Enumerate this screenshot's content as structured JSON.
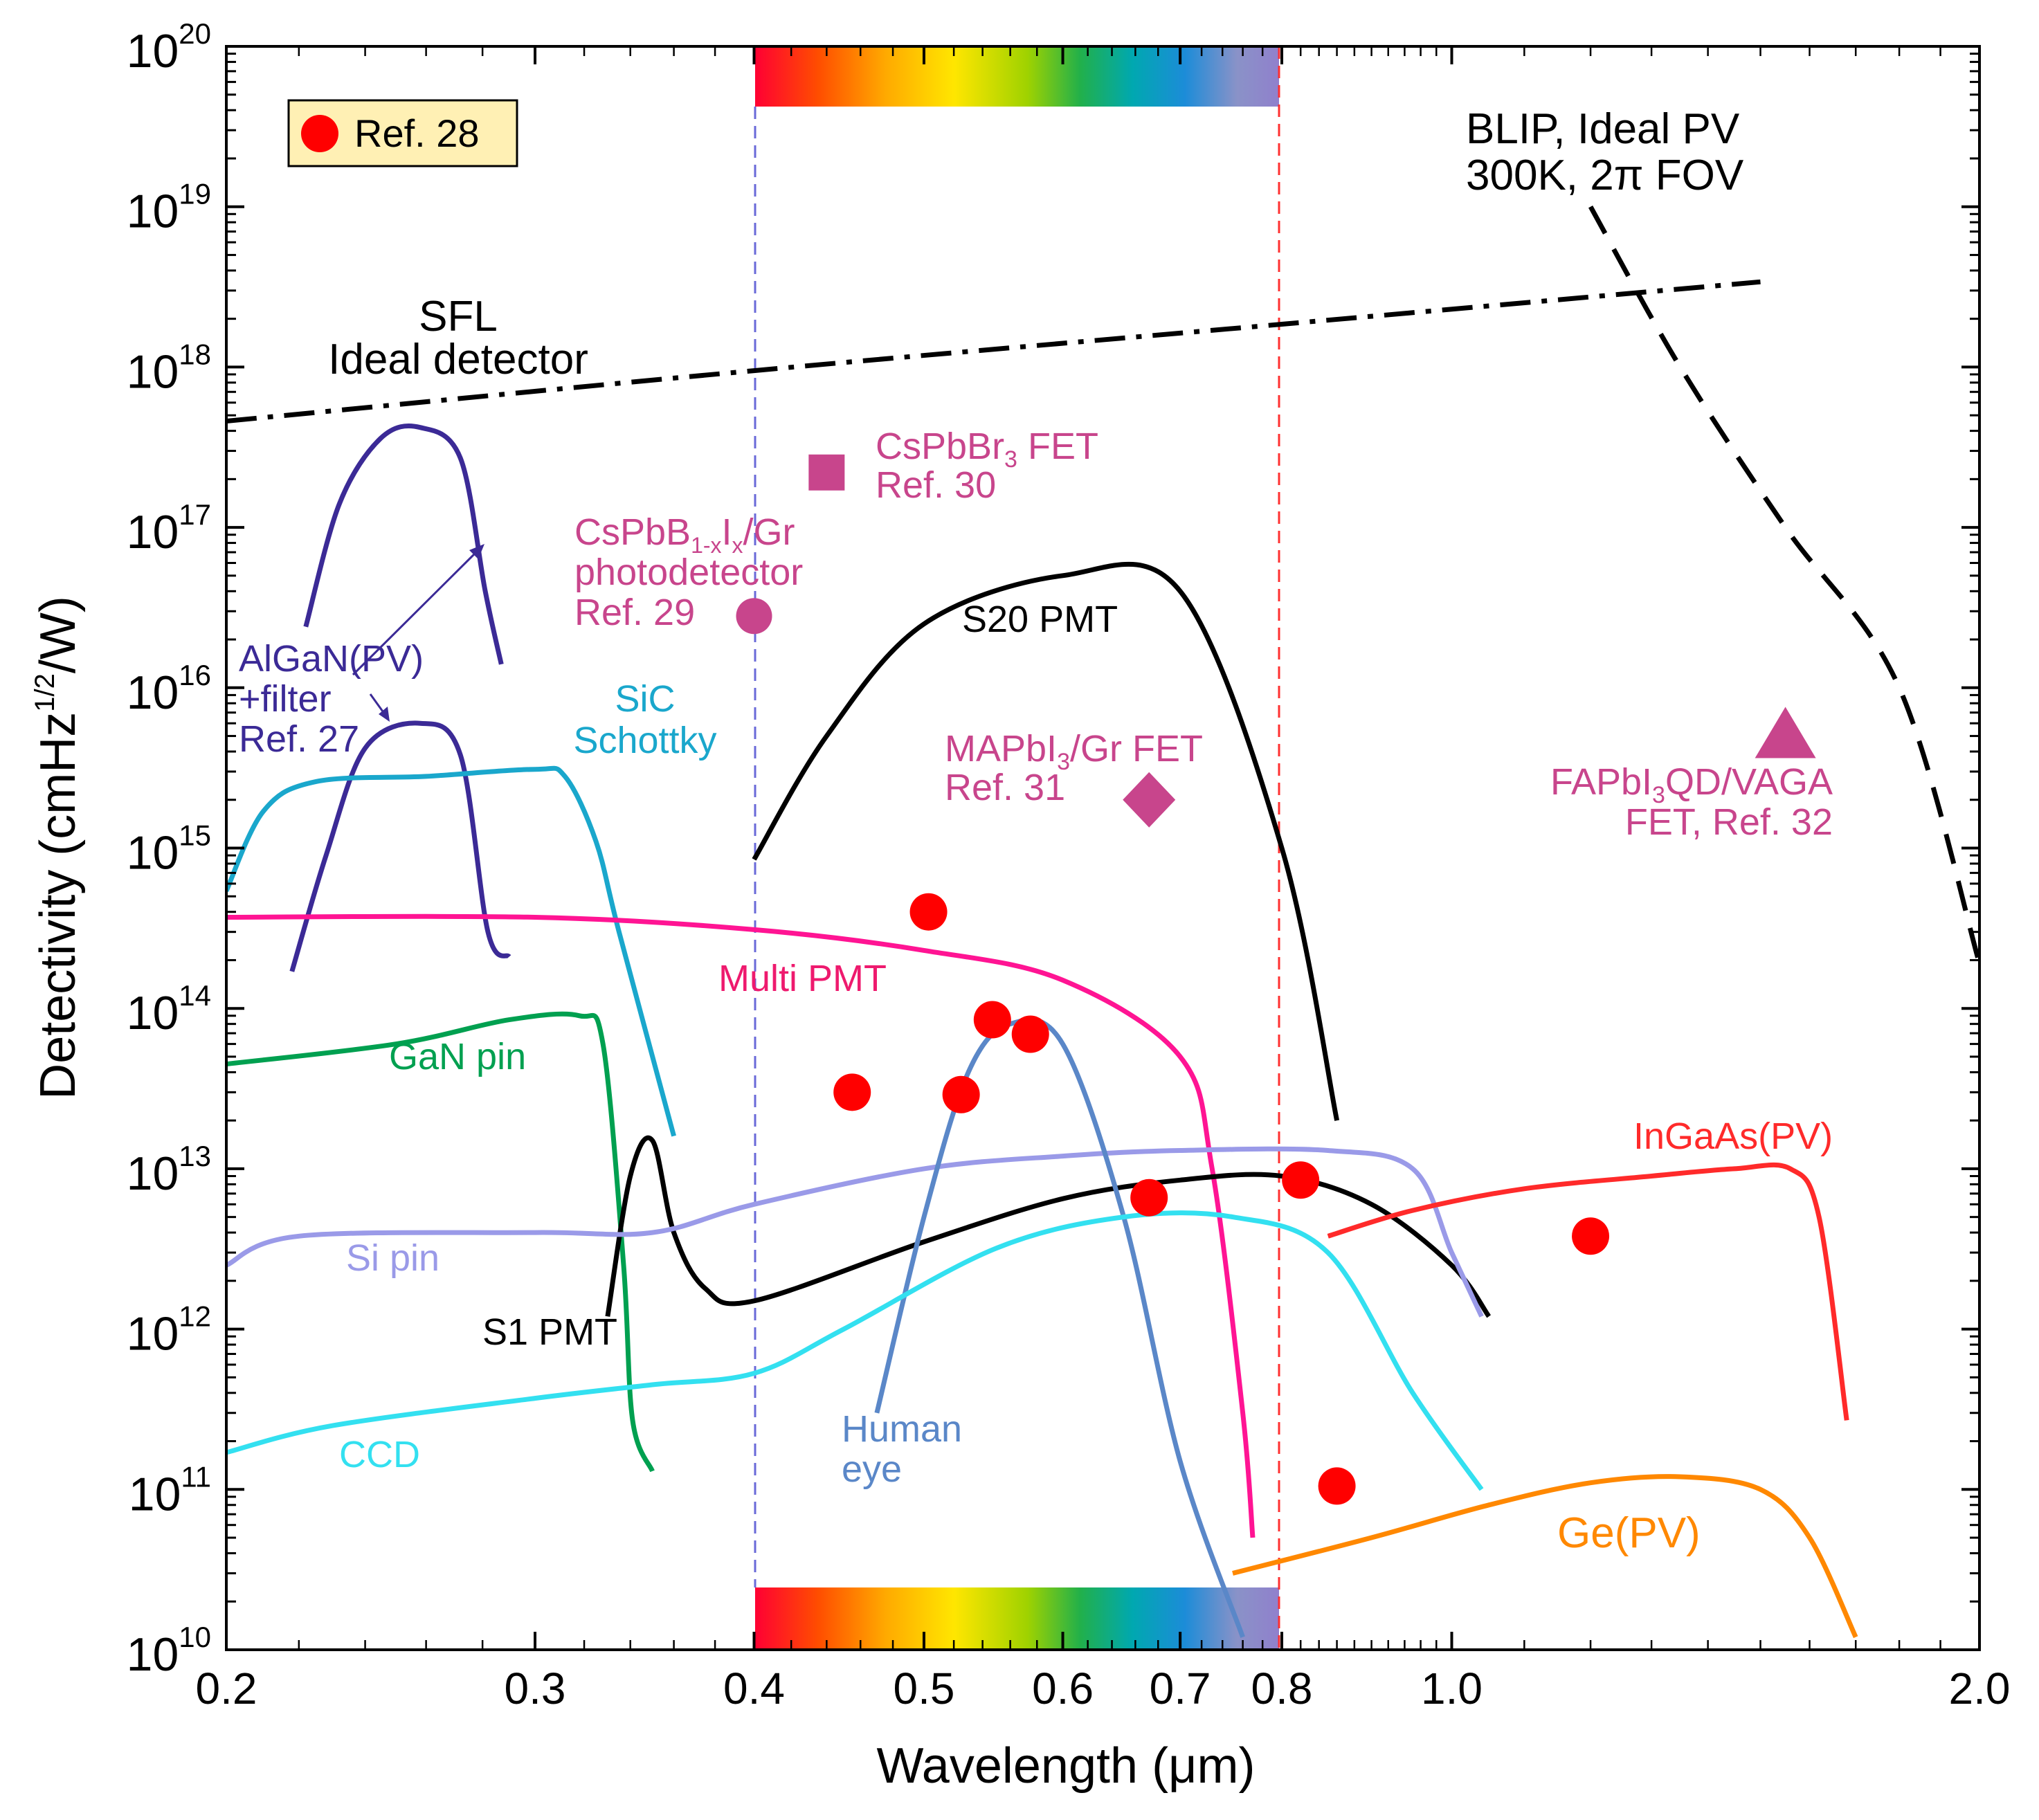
{
  "chart_data": {
    "type": "line",
    "xlabel": "Wavelength (μm)",
    "ylabel": "Detectivity (cmHz^1/2/W)",
    "x_scale": "log",
    "y_scale": "log",
    "xlim": [
      0.2,
      2.0
    ],
    "ylim": [
      10000000000.0,
      1e+20
    ],
    "grid": false,
    "x_ticks": [
      {
        "v": 0.2,
        "label": "0.2"
      },
      {
        "v": 0.3,
        "label": "0.3"
      },
      {
        "v": 0.4,
        "label": "0.4"
      },
      {
        "v": 0.5,
        "label": "0.5"
      },
      {
        "v": 0.6,
        "label": "0.6"
      },
      {
        "v": 0.7,
        "label": "0.7"
      },
      {
        "v": 0.8,
        "label": "0.8"
      },
      {
        "v": 1.0,
        "label": "1.0"
      },
      {
        "v": 2.0,
        "label": "2.0"
      }
    ],
    "y_ticks": [
      {
        "v": 10000000000.0,
        "base": "10",
        "exp": "10"
      },
      {
        "v": 100000000000.0,
        "base": "10",
        "exp": "11"
      },
      {
        "v": 1000000000000.0,
        "base": "10",
        "exp": "12"
      },
      {
        "v": 10000000000000.0,
        "base": "10",
        "exp": "13"
      },
      {
        "v": 100000000000000.0,
        "base": "10",
        "exp": "14"
      },
      {
        "v": 1000000000000000.0,
        "base": "10",
        "exp": "15"
      },
      {
        "v": 1e+16,
        "base": "10",
        "exp": "16"
      },
      {
        "v": 1e+17,
        "base": "10",
        "exp": "17"
      },
      {
        "v": 1e+18,
        "base": "10",
        "exp": "18"
      },
      {
        "v": 1e+19,
        "base": "10",
        "exp": "19"
      },
      {
        "v": 1e+20,
        "base": "10",
        "exp": "20"
      }
    ],
    "visible_band": {
      "start": 0.4,
      "end": 0.8
    },
    "legend": {
      "placement": "top-left",
      "label": "Ref. 28",
      "color": "#ff0000"
    },
    "series": [
      {
        "name": "SFL Ideal detector",
        "color": "#000000",
        "dash": "dashdot",
        "points": [
          [
            0.2,
            4.6e+17
          ],
          [
            0.4,
            9.5e+17
          ],
          [
            0.8,
            1.85e+18
          ],
          [
            1.5,
            3.4e+18
          ]
        ]
      },
      {
        "name": "BLIP, Ideal PV 300K, 2π FOV",
        "color": "#000000",
        "dash": "dash",
        "points": [
          [
            1.2,
            1e+19
          ],
          [
            1.35,
            1e+18
          ],
          [
            1.55,
            1e+17
          ],
          [
            1.8,
            1e+16
          ],
          [
            2.0,
            190000000000000.0
          ]
        ]
      },
      {
        "name": "AlGaN(PV)",
        "color": "#3b2a96",
        "dash": "solid",
        "points": [
          [
            0.222,
            2.4e+16
          ],
          [
            0.232,
            1.4e+17
          ],
          [
            0.245,
            3.6e+17
          ],
          [
            0.258,
            4.2e+17
          ],
          [
            0.272,
            2.7e+17
          ],
          [
            0.281,
            4e+16
          ],
          [
            0.287,
            1.4e+16
          ]
        ]
      },
      {
        "name": "AlGaN(PV) +filter",
        "color": "#3b2a96",
        "dash": "solid",
        "points": [
          [
            0.218,
            170000000000000.0
          ],
          [
            0.228,
            900000000000000.0
          ],
          [
            0.24,
            4200000000000000.0
          ],
          [
            0.258,
            6000000000000000.0
          ],
          [
            0.272,
            3800000000000000.0
          ],
          [
            0.282,
            300000000000000.0
          ],
          [
            0.29,
            210000000000000.0
          ]
        ]
      },
      {
        "name": "SiC Schottky",
        "color": "#1aa7cc",
        "dash": "solid",
        "points": [
          [
            0.2,
            540000000000000.0
          ],
          [
            0.21,
            1700000000000000.0
          ],
          [
            0.225,
            2600000000000000.0
          ],
          [
            0.26,
            2800000000000000.0
          ],
          [
            0.3,
            3100000000000000.0
          ],
          [
            0.312,
            2800000000000000.0
          ],
          [
            0.325,
            1100000000000000.0
          ],
          [
            0.335,
            300000000000000.0
          ],
          [
            0.36,
            16000000000000.0
          ]
        ]
      },
      {
        "name": "Multi PMT",
        "color": "#ff1493",
        "dash": "solid",
        "points": [
          [
            0.2,
            370000000000000.0
          ],
          [
            0.3,
            370000000000000.0
          ],
          [
            0.4,
            310000000000000.0
          ],
          [
            0.5,
            230000000000000.0
          ],
          [
            0.6,
            150000000000000.0
          ],
          [
            0.7,
            50000000000000.0
          ],
          [
            0.73,
            10000000000000.0
          ],
          [
            0.76,
            300000000000.0
          ],
          [
            0.77,
            50000000000.0
          ]
        ]
      },
      {
        "name": "GaN pin",
        "color": "#00a050",
        "dash": "solid",
        "points": [
          [
            0.2,
            45000000000000.0
          ],
          [
            0.25,
            60000000000000.0
          ],
          [
            0.29,
            85000000000000.0
          ],
          [
            0.318,
            90000000000000.0
          ],
          [
            0.328,
            60000000000000.0
          ],
          [
            0.337,
            2500000000000.0
          ],
          [
            0.341,
            270000000000.0
          ],
          [
            0.35,
            130000000000.0
          ]
        ]
      },
      {
        "name": "S20 PMT",
        "color": "#000000",
        "dash": "solid",
        "points": [
          [
            0.4,
            850000000000000.0
          ],
          [
            0.44,
            5000000000000000.0
          ],
          [
            0.5,
            2.5e+16
          ],
          [
            0.6,
            5e+16
          ],
          [
            0.7,
            4e+16
          ],
          [
            0.8,
            1000000000000000.0
          ],
          [
            0.86,
            20000000000000.0
          ]
        ]
      },
      {
        "name": "S1 PMT",
        "color": "#000000",
        "dash": "solid",
        "points": [
          [
            0.33,
            1200000000000.0
          ],
          [
            0.34,
            9000000000000.0
          ],
          [
            0.35,
            15000000000000.0
          ],
          [
            0.36,
            4000000000000.0
          ],
          [
            0.375,
            1800000000000.0
          ],
          [
            0.4,
            1500000000000.0
          ],
          [
            0.5,
            3500000000000.0
          ],
          [
            0.6,
            6500000000000.0
          ],
          [
            0.7,
            8500000000000.0
          ],
          [
            0.8,
            9000000000000.0
          ],
          [
            0.9,
            6000000000000.0
          ],
          [
            1.0,
            2500000000000.0
          ],
          [
            1.05,
            1200000000000.0
          ]
        ]
      },
      {
        "name": "Si pin",
        "color": "#9a9ae8",
        "dash": "solid",
        "points": [
          [
            0.2,
            2500000000000.0
          ],
          [
            0.22,
            3800000000000.0
          ],
          [
            0.3,
            4000000000000.0
          ],
          [
            0.35,
            4000000000000.0
          ],
          [
            0.4,
            6000000000000.0
          ],
          [
            0.5,
            10000000000000.0
          ],
          [
            0.6,
            12000000000000.0
          ],
          [
            0.7,
            13000000000000.0
          ],
          [
            0.85,
            13000000000000.0
          ],
          [
            0.95,
            10000000000000.0
          ],
          [
            1.0,
            3000000000000.0
          ],
          [
            1.04,
            1200000000000.0
          ]
        ]
      },
      {
        "name": "Human eye",
        "color": "#5a87c8",
        "dash": "solid",
        "points": [
          [
            0.47,
            300000000000.0
          ],
          [
            0.5,
            5000000000000.0
          ],
          [
            0.53,
            40000000000000.0
          ],
          [
            0.56,
            80000000000000.0
          ],
          [
            0.6,
            60000000000000.0
          ],
          [
            0.65,
            5000000000000.0
          ],
          [
            0.7,
            150000000000.0
          ],
          [
            0.76,
            12000000000.0
          ]
        ]
      },
      {
        "name": "CCD",
        "color": "#33e0f0",
        "dash": "solid",
        "points": [
          [
            0.2,
            170000000000.0
          ],
          [
            0.23,
            250000000000.0
          ],
          [
            0.3,
            370000000000.0
          ],
          [
            0.35,
            450000000000.0
          ],
          [
            0.4,
            530000000000.0
          ],
          [
            0.45,
            1000000000000.0
          ],
          [
            0.55,
            3200000000000.0
          ],
          [
            0.65,
            5000000000000.0
          ],
          [
            0.75,
            5000000000000.0
          ],
          [
            0.85,
            3000000000000.0
          ],
          [
            0.95,
            400000000000.0
          ],
          [
            1.04,
            100000000000.0
          ]
        ]
      },
      {
        "name": "InGaAs(PV)",
        "color": "#ff2a2a",
        "dash": "solid",
        "points": [
          [
            0.85,
            3800000000000.0
          ],
          [
            0.95,
            5500000000000.0
          ],
          [
            1.1,
            7500000000000.0
          ],
          [
            1.3,
            9000000000000.0
          ],
          [
            1.45,
            10000000000000.0
          ],
          [
            1.56,
            10000000000000.0
          ],
          [
            1.62,
            5000000000000.0
          ],
          [
            1.68,
            270000000000.0
          ]
        ]
      },
      {
        "name": "Ge(PV)",
        "color": "#ff8800",
        "dash": "solid",
        "points": [
          [
            0.75,
            30000000000.0
          ],
          [
            0.9,
            50000000000.0
          ],
          [
            1.05,
            80000000000.0
          ],
          [
            1.2,
            110000000000.0
          ],
          [
            1.35,
            120000000000.0
          ],
          [
            1.5,
            100000000000.0
          ],
          [
            1.6,
            50000000000.0
          ],
          [
            1.7,
            12000000000.0
          ]
        ]
      }
    ],
    "ref28_points": [
      [
        0.455,
        30000000000000.0
      ],
      [
        0.503,
        400000000000000.0
      ],
      [
        0.525,
        29000000000000.0
      ],
      [
        0.547,
        85000000000000.0
      ],
      [
        0.575,
        69000000000000.0
      ],
      [
        0.672,
        6600000000000.0
      ],
      [
        0.82,
        8500000000000.0
      ],
      [
        0.86,
        105000000000.0
      ],
      [
        1.2,
        3800000000000.0
      ]
    ],
    "markers": [
      {
        "label_key": "cspbbr3",
        "shape": "square",
        "color": "#c8458c",
        "x": 0.44,
        "y": 2.2e+17
      },
      {
        "label_key": "cspbbix",
        "shape": "circle",
        "color": "#c8458c",
        "x": 0.4,
        "y": 2.8e+16
      },
      {
        "label_key": "mapbi3",
        "shape": "diamond",
        "color": "#c8458c",
        "x": 0.672,
        "y": 2000000000000000.0
      },
      {
        "label_key": "fapbi3",
        "shape": "triangle",
        "color": "#c8458c",
        "x": 1.55,
        "y": 5000000000000000.0
      }
    ],
    "labels": {
      "sfl_line1": "SFL",
      "sfl_line2": "Ideal detector",
      "blip_line1": "BLIP, Ideal PV",
      "blip_line2": "300K, 2π FOV",
      "algan_line1": "AlGaN(PV)",
      "algan_line2": "+filter",
      "algan_line3": "Ref. 27",
      "sic_line1": "SiC",
      "sic_line2": "Schottky",
      "multi_pmt": "Multi PMT",
      "gan_pin": "GaN pin",
      "s20_pmt": "S20 PMT",
      "s1_pmt": "S1 PMT",
      "si_pin": "Si pin",
      "ccd": "CCD",
      "human_line1": "Human",
      "human_line2": "eye",
      "ingaas": "InGaAs(PV)",
      "ge": "Ge(PV)",
      "cspbbr3_line1_a": "CsPbBr",
      "cspbbr3_line1_sub": "3",
      "cspbbr3_line1_b": " FET",
      "cspbbr3_line2": "Ref. 30",
      "cspbbix_line1_a": "CsPbB",
      "cspbbix_line1_sub1": "1-x",
      "cspbbix_line1_b": "I",
      "cspbbix_line1_sub2": "x",
      "cspbbix_line1_c": "/Gr",
      "cspbbix_line2": "photodetector",
      "cspbbix_line3": "Ref. 29",
      "mapbi3_line1_a": "MAPbI",
      "mapbi3_line1_sub": "3",
      "mapbi3_line1_b": "/Gr FET",
      "mapbi3_line2": "Ref. 31",
      "fapbi3_line1_a": "FAPbI",
      "fapbi3_line1_sub": "3",
      "fapbi3_line1_b": "QD/VAGA",
      "fapbi3_line2": "FET, Ref. 32",
      "ylabel_a": "Detectivity (cmHz",
      "ylabel_sup": "1/2",
      "ylabel_b": "/W)"
    }
  }
}
